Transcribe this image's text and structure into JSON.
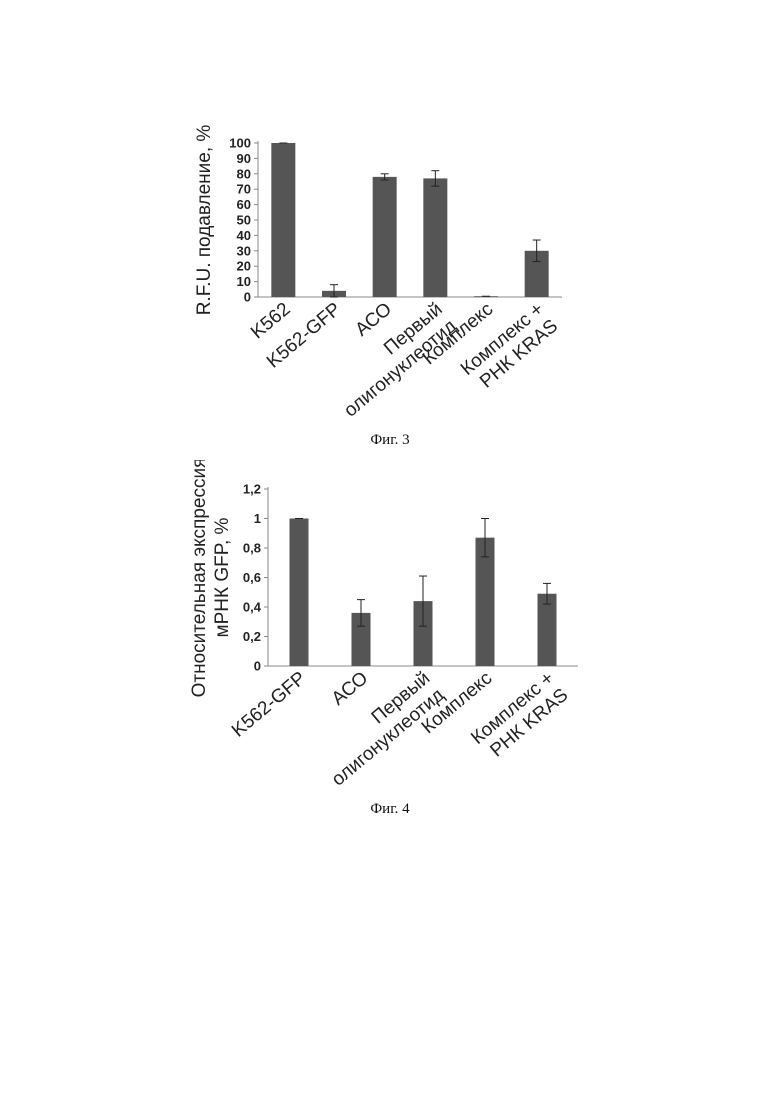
{
  "chart_data": [
    {
      "type": "bar",
      "figure_label": "Фиг. 3",
      "ylabel": "R.F.U. подавление, %",
      "ylim": [
        0,
        100
      ],
      "yticks": [
        0,
        10,
        20,
        30,
        40,
        50,
        60,
        70,
        80,
        90,
        100
      ],
      "categories": [
        [
          "K562"
        ],
        [
          "K562-GFP"
        ],
        [
          "АСО"
        ],
        [
          "Первый",
          "олигонуклеотид"
        ],
        [
          "Комплекс"
        ],
        [
          "Комплекс +",
          "РНК KRAS"
        ]
      ],
      "values": [
        100,
        4,
        78,
        77,
        0.5,
        30
      ],
      "errors": [
        0,
        4,
        2,
        5,
        0,
        7
      ],
      "bar_color": "#555555"
    },
    {
      "type": "bar",
      "figure_label": "Фиг. 4",
      "ylabel": [
        "Относительная экспрессия",
        "мРНК GFP, %"
      ],
      "ylim": [
        0,
        1.2
      ],
      "yticks": [
        "0",
        "0,2",
        "0,4",
        "0,6",
        "0,8",
        "1",
        "1,2"
      ],
      "categories": [
        [
          "K562-GFP"
        ],
        [
          "АСО"
        ],
        [
          "Первый",
          "олигонуклеотид"
        ],
        [
          "Комплекс"
        ],
        [
          "Комплекс +",
          "РНК KRAS"
        ]
      ],
      "values": [
        1.0,
        0.36,
        0.44,
        0.87,
        0.49
      ],
      "errors": [
        0,
        0.09,
        0.17,
        0.13,
        0.07
      ],
      "bar_color": "#555555"
    }
  ]
}
